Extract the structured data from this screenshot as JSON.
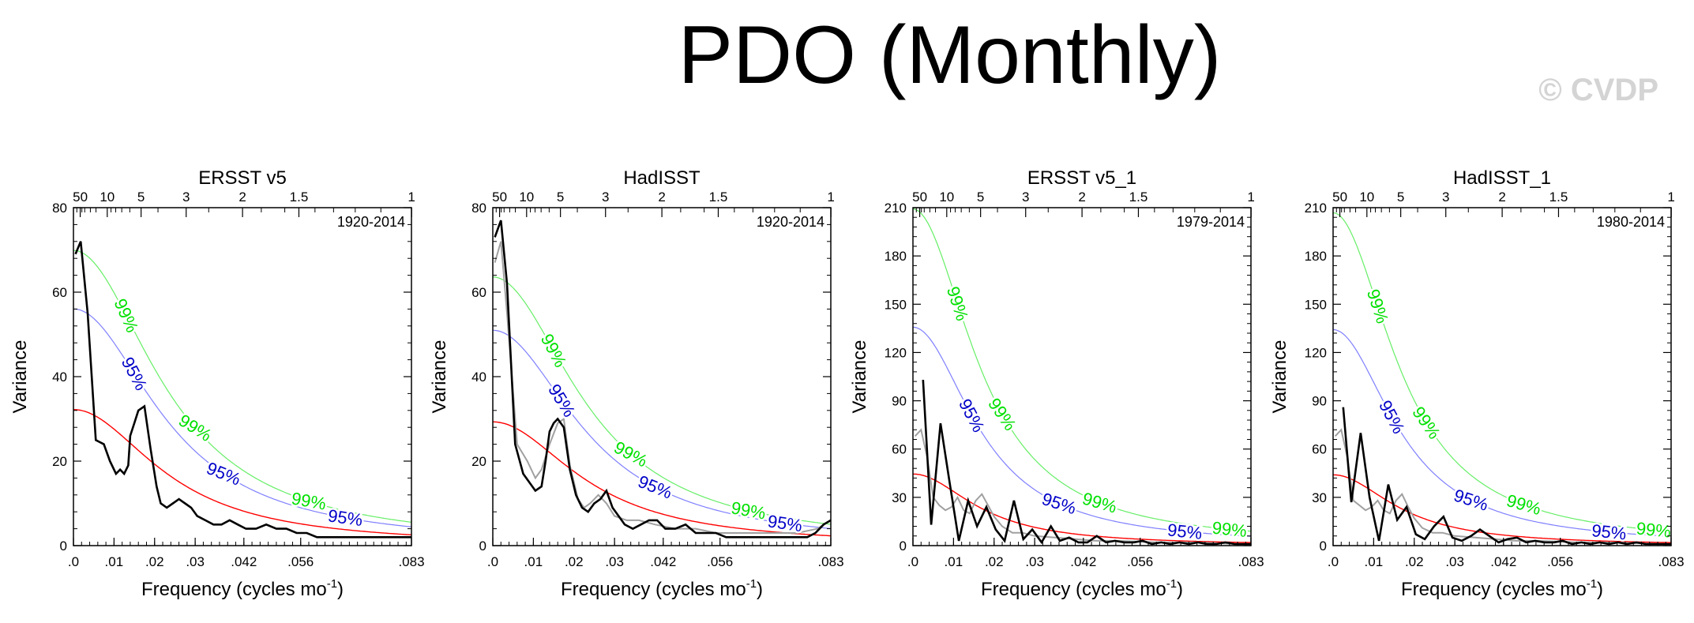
{
  "title": "PDO (Monthly)",
  "watermark": "© CVDP",
  "colors": {
    "spectrum": "#000000",
    "spectrum_alt": "#a0a0a0",
    "red_noise": "#ff0000",
    "conf95": "#0000c8",
    "conf95_line": "#7f7fff",
    "conf99": "#00e000",
    "conf99_line": "#66ee66"
  },
  "chart_data": [
    {
      "type": "line",
      "title": "ERSST v5",
      "xlabel": "Frequency (cycles mo",
      "xlabel_sup": "-1",
      "ylabel": "Variance",
      "period_label": "1920-2014",
      "xlim": [
        0,
        0.0833
      ],
      "ylim": [
        0,
        80
      ],
      "xticks": [
        {
          "v": 0.0,
          "label": ".0"
        },
        {
          "v": 0.01,
          "label": ".01"
        },
        {
          "v": 0.02,
          "label": ".02"
        },
        {
          "v": 0.03,
          "label": ".03"
        },
        {
          "v": 0.042,
          "label": ".042"
        },
        {
          "v": 0.056,
          "label": ".056"
        },
        {
          "v": 0.0833,
          "label": ".083"
        }
      ],
      "yticks": [
        0,
        20,
        40,
        60,
        80
      ],
      "period_ticks": [
        {
          "v": 0.00167,
          "label": "50"
        },
        {
          "v": 0.00833,
          "label": "10"
        },
        {
          "v": 0.01667,
          "label": "5"
        },
        {
          "v": 0.02778,
          "label": "3"
        },
        {
          "v": 0.04167,
          "label": "2"
        },
        {
          "v": 0.05556,
          "label": "1.5"
        },
        {
          "v": 0.08333,
          "label": "1"
        }
      ],
      "red_noise": {
        "a": 32.2,
        "b": 1.8,
        "k": 50
      },
      "conf95_scale": 1.74,
      "conf99_scale": 2.17,
      "labels95": [
        {
          "x": 0.015,
          "label": "95%",
          "angle": 62
        },
        {
          "x": 0.037,
          "label": "95%",
          "angle": 22
        },
        {
          "x": 0.067,
          "label": "95%",
          "angle": 8
        }
      ],
      "labels99": [
        {
          "x": 0.013,
          "label": "99%",
          "angle": 66
        },
        {
          "x": 0.03,
          "label": "99%",
          "angle": 32
        },
        {
          "x": 0.058,
          "label": "99%",
          "angle": 10
        }
      ],
      "series": [
        {
          "role": "spectrum",
          "x": [
            0.0005,
            0.0018,
            0.0035,
            0.0055,
            0.0075,
            0.009,
            0.0105,
            0.0115,
            0.0125,
            0.0135,
            0.014,
            0.015,
            0.016,
            0.0175,
            0.019,
            0.0205,
            0.0215,
            0.023,
            0.0245,
            0.026,
            0.0275,
            0.029,
            0.0305,
            0.0325,
            0.0345,
            0.0365,
            0.0385,
            0.0405,
            0.0425,
            0.045,
            0.0475,
            0.05,
            0.0525,
            0.055,
            0.0575,
            0.06,
            0.0625,
            0.065,
            0.0675,
            0.07,
            0.0725,
            0.075,
            0.0775,
            0.08,
            0.0833
          ],
          "y": [
            69,
            72,
            55,
            25,
            24,
            20,
            17,
            18,
            17,
            19,
            26,
            29,
            32,
            33,
            23,
            14,
            10,
            9,
            10,
            11,
            10,
            9,
            7,
            6,
            5,
            5,
            6,
            5,
            4,
            4,
            5,
            4,
            4,
            3,
            3,
            2,
            2,
            2,
            2,
            2,
            2,
            2,
            2,
            2,
            2
          ]
        }
      ]
    },
    {
      "type": "line",
      "title": "HadISST",
      "xlabel": "Frequency (cycles mo",
      "xlabel_sup": "-1",
      "ylabel": "Variance",
      "period_label": "1920-2014",
      "xlim": [
        0,
        0.0833
      ],
      "ylim": [
        0,
        80
      ],
      "xticks": [
        {
          "v": 0.0,
          "label": ".0"
        },
        {
          "v": 0.01,
          "label": ".01"
        },
        {
          "v": 0.02,
          "label": ".02"
        },
        {
          "v": 0.03,
          "label": ".03"
        },
        {
          "v": 0.042,
          "label": ".042"
        },
        {
          "v": 0.056,
          "label": ".056"
        },
        {
          "v": 0.0833,
          "label": ".083"
        }
      ],
      "yticks": [
        0,
        20,
        40,
        60,
        80
      ],
      "period_ticks": [
        {
          "v": 0.00167,
          "label": "50"
        },
        {
          "v": 0.00833,
          "label": "10"
        },
        {
          "v": 0.01667,
          "label": "5"
        },
        {
          "v": 0.02778,
          "label": "3"
        },
        {
          "v": 0.04167,
          "label": "2"
        },
        {
          "v": 0.05556,
          "label": "1.5"
        },
        {
          "v": 0.08333,
          "label": "1"
        }
      ],
      "red_noise": {
        "a": 29.3,
        "b": 1.8,
        "k": 50
      },
      "conf95_scale": 1.74,
      "conf99_scale": 2.17,
      "labels95": [
        {
          "x": 0.017,
          "label": "95%",
          "angle": 58
        },
        {
          "x": 0.04,
          "label": "95%",
          "angle": 22
        },
        {
          "x": 0.072,
          "label": "95%",
          "angle": 8
        }
      ],
      "labels99": [
        {
          "x": 0.015,
          "label": "99%",
          "angle": 62
        },
        {
          "x": 0.034,
          "label": "99%",
          "angle": 28
        },
        {
          "x": 0.063,
          "label": "99%",
          "angle": 10
        }
      ],
      "series": [
        {
          "role": "spectrum_alt",
          "x": [
            0.0005,
            0.002,
            0.0035,
            0.006,
            0.0085,
            0.0105,
            0.012,
            0.014,
            0.016,
            0.0175,
            0.019,
            0.021,
            0.0225,
            0.024,
            0.026,
            0.028,
            0.03,
            0.033,
            0.036,
            0.04,
            0.045,
            0.05,
            0.055,
            0.06,
            0.065,
            0.07,
            0.075,
            0.08,
            0.0833
          ],
          "y": [
            67,
            72,
            55,
            24,
            20,
            16,
            18,
            24,
            29,
            30,
            19,
            11,
            9,
            10,
            12,
            10,
            7,
            6,
            6,
            5,
            4,
            4,
            3,
            3,
            3,
            3,
            3,
            4,
            6
          ]
        },
        {
          "role": "spectrum",
          "x": [
            0.0005,
            0.002,
            0.0035,
            0.0055,
            0.0075,
            0.009,
            0.0105,
            0.012,
            0.013,
            0.014,
            0.015,
            0.016,
            0.0175,
            0.019,
            0.0205,
            0.022,
            0.0235,
            0.025,
            0.0265,
            0.028,
            0.0295,
            0.031,
            0.0325,
            0.0345,
            0.0365,
            0.0385,
            0.0405,
            0.0425,
            0.045,
            0.0475,
            0.05,
            0.0525,
            0.055,
            0.0575,
            0.06,
            0.0625,
            0.065,
            0.0675,
            0.07,
            0.0725,
            0.075,
            0.0775,
            0.0795,
            0.0815,
            0.0833
          ],
          "y": [
            73,
            77,
            62,
            24,
            17,
            15,
            13,
            14,
            20,
            27,
            29,
            30,
            28,
            18,
            12,
            9,
            8,
            10,
            11,
            13,
            9,
            7,
            5,
            4,
            5,
            6,
            6,
            4,
            4,
            5,
            3,
            3,
            3,
            2,
            2,
            2,
            2,
            2,
            2,
            2,
            2,
            2,
            3,
            5,
            6
          ]
        }
      ]
    },
    {
      "type": "line",
      "title": "ERSST v5_1",
      "xlabel": "Frequency (cycles mo",
      "xlabel_sup": "-1",
      "ylabel": "Variance",
      "period_label": "1979-2014",
      "xlim": [
        0,
        0.0833
      ],
      "ylim": [
        0,
        210
      ],
      "xticks": [
        {
          "v": 0.0,
          "label": ".0"
        },
        {
          "v": 0.01,
          "label": ".01"
        },
        {
          "v": 0.02,
          "label": ".02"
        },
        {
          "v": 0.03,
          "label": ".03"
        },
        {
          "v": 0.042,
          "label": ".042"
        },
        {
          "v": 0.056,
          "label": ".056"
        },
        {
          "v": 0.0833,
          "label": ".083"
        }
      ],
      "yticks": [
        0,
        30,
        60,
        90,
        120,
        150,
        180,
        210
      ],
      "period_ticks": [
        {
          "v": 0.00167,
          "label": "50"
        },
        {
          "v": 0.00833,
          "label": "10"
        },
        {
          "v": 0.01667,
          "label": "5"
        },
        {
          "v": 0.02778,
          "label": "3"
        },
        {
          "v": 0.04167,
          "label": "2"
        },
        {
          "v": 0.05556,
          "label": "1.5"
        },
        {
          "v": 0.08333,
          "label": "1"
        }
      ],
      "red_noise": {
        "a": 44.5,
        "b": 2.5,
        "k": 50
      },
      "conf95_scale": 3.05,
      "conf99_scale": 4.7,
      "labels95": [
        {
          "x": 0.0145,
          "label": "95%",
          "angle": 62
        },
        {
          "x": 0.036,
          "label": "95%",
          "angle": 18
        },
        {
          "x": 0.067,
          "label": "95%",
          "angle": 6
        }
      ],
      "labels99": [
        {
          "x": 0.011,
          "label": "99%",
          "angle": 72
        },
        {
          "x": 0.022,
          "label": "99%",
          "angle": 55
        },
        {
          "x": 0.046,
          "label": "99%",
          "angle": 16
        },
        {
          "x": 0.078,
          "label": "99%",
          "angle": 6
        }
      ],
      "series": [
        {
          "role": "spectrum_alt",
          "x": [
            0.0005,
            0.002,
            0.0035,
            0.005,
            0.0065,
            0.008,
            0.0095,
            0.011,
            0.0125,
            0.014,
            0.0155,
            0.017,
            0.0185,
            0.02,
            0.022,
            0.0245,
            0.027,
            0.03,
            0.035,
            0.04,
            0.045,
            0.05,
            0.06,
            0.07,
            0.08,
            0.0833
          ],
          "y": [
            68,
            72,
            55,
            30,
            25,
            22,
            24,
            30,
            22,
            20,
            28,
            32,
            25,
            18,
            12,
            8,
            8,
            6,
            5,
            4,
            3,
            3,
            2,
            2,
            1,
            1
          ]
        },
        {
          "role": "spectrum",
          "x": [
            0.0025,
            0.0045,
            0.0068,
            0.009,
            0.0113,
            0.0136,
            0.0158,
            0.0181,
            0.0204,
            0.0226,
            0.0249,
            0.0272,
            0.0294,
            0.0317,
            0.034,
            0.0362,
            0.0385,
            0.0408,
            0.043,
            0.0453,
            0.0476,
            0.0498,
            0.0521,
            0.0544,
            0.0566,
            0.0589,
            0.0612,
            0.0634,
            0.0657,
            0.068,
            0.0702,
            0.0725,
            0.0748,
            0.077,
            0.0793,
            0.0816,
            0.0833
          ],
          "y": [
            103,
            13,
            76,
            40,
            3,
            28,
            12,
            24,
            10,
            3,
            28,
            4,
            10,
            2,
            12,
            3,
            5,
            2,
            2,
            6,
            2,
            3,
            2,
            2,
            3,
            1,
            2,
            1,
            2,
            1,
            2,
            1,
            1,
            2,
            1,
            1,
            1
          ]
        }
      ]
    },
    {
      "type": "line",
      "title": "HadISST_1",
      "xlabel": "Frequency (cycles mo",
      "xlabel_sup": "-1",
      "ylabel": "Variance",
      "period_label": "1980-2014",
      "xlim": [
        0,
        0.0833
      ],
      "ylim": [
        0,
        210
      ],
      "xticks": [
        {
          "v": 0.0,
          "label": ".0"
        },
        {
          "v": 0.01,
          "label": ".01"
        },
        {
          "v": 0.02,
          "label": ".02"
        },
        {
          "v": 0.03,
          "label": ".03"
        },
        {
          "v": 0.042,
          "label": ".042"
        },
        {
          "v": 0.056,
          "label": ".056"
        },
        {
          "v": 0.0833,
          "label": ".083"
        }
      ],
      "yticks": [
        0,
        30,
        60,
        90,
        120,
        150,
        180,
        210
      ],
      "period_ticks": [
        {
          "v": 0.00167,
          "label": "50"
        },
        {
          "v": 0.00833,
          "label": "10"
        },
        {
          "v": 0.01667,
          "label": "5"
        },
        {
          "v": 0.02778,
          "label": "3"
        },
        {
          "v": 0.04167,
          "label": "2"
        },
        {
          "v": 0.05556,
          "label": "1.5"
        },
        {
          "v": 0.08333,
          "label": "1"
        }
      ],
      "red_noise": {
        "a": 44.0,
        "b": 2.5,
        "k": 50
      },
      "conf95_scale": 3.05,
      "conf99_scale": 4.7,
      "labels95": [
        {
          "x": 0.0145,
          "label": "95%",
          "angle": 62
        },
        {
          "x": 0.034,
          "label": "95%",
          "angle": 18
        },
        {
          "x": 0.068,
          "label": "95%",
          "angle": 6
        }
      ],
      "labels99": [
        {
          "x": 0.011,
          "label": "99%",
          "angle": 72
        },
        {
          "x": 0.023,
          "label": "99%",
          "angle": 55
        },
        {
          "x": 0.047,
          "label": "99%",
          "angle": 16
        },
        {
          "x": 0.079,
          "label": "99%",
          "angle": 6
        }
      ],
      "series": [
        {
          "role": "spectrum_alt",
          "x": [
            0.0005,
            0.002,
            0.0035,
            0.005,
            0.0065,
            0.008,
            0.0095,
            0.011,
            0.0125,
            0.014,
            0.0155,
            0.017,
            0.0185,
            0.02,
            0.022,
            0.0245,
            0.027,
            0.03,
            0.035,
            0.04,
            0.045,
            0.05,
            0.06,
            0.07,
            0.08,
            0.0833
          ],
          "y": [
            68,
            72,
            55,
            28,
            25,
            22,
            24,
            28,
            22,
            20,
            28,
            32,
            24,
            17,
            11,
            8,
            8,
            6,
            5,
            4,
            3,
            3,
            2,
            2,
            1,
            1
          ]
        },
        {
          "role": "spectrum",
          "x": [
            0.0025,
            0.0045,
            0.0068,
            0.009,
            0.0113,
            0.0136,
            0.0158,
            0.0181,
            0.0204,
            0.0226,
            0.0249,
            0.0272,
            0.0294,
            0.0317,
            0.034,
            0.0362,
            0.0385,
            0.0408,
            0.043,
            0.0453,
            0.0476,
            0.0498,
            0.0521,
            0.0544,
            0.0566,
            0.0589,
            0.0612,
            0.0634,
            0.0657,
            0.068,
            0.0702,
            0.0725,
            0.0748,
            0.077,
            0.0793,
            0.0816,
            0.0833
          ],
          "y": [
            86,
            27,
            70,
            30,
            3,
            38,
            16,
            24,
            7,
            4,
            12,
            18,
            5,
            3,
            6,
            10,
            6,
            2,
            4,
            5,
            2,
            3,
            2,
            2,
            3,
            1,
            2,
            1,
            2,
            1,
            2,
            1,
            2,
            1,
            1,
            1,
            1
          ]
        }
      ]
    }
  ]
}
